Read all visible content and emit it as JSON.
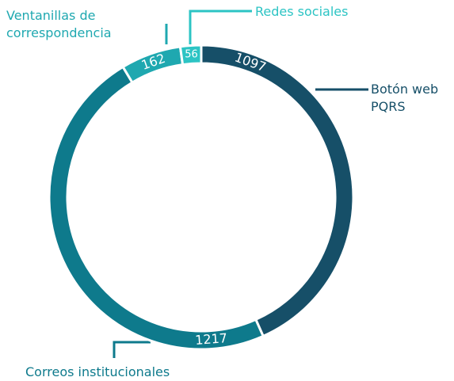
{
  "chart_data": {
    "type": "donut",
    "categories": [
      "Botón web PQRS",
      "Correos institucionales",
      "Ventanillas de correspondencia",
      "Redes sociales"
    ],
    "values": [
      1097,
      1217,
      162,
      56
    ],
    "colors": [
      "#164f68",
      "#0e7a8c",
      "#1fa8b0",
      "#2cc4c4"
    ]
  }
}
